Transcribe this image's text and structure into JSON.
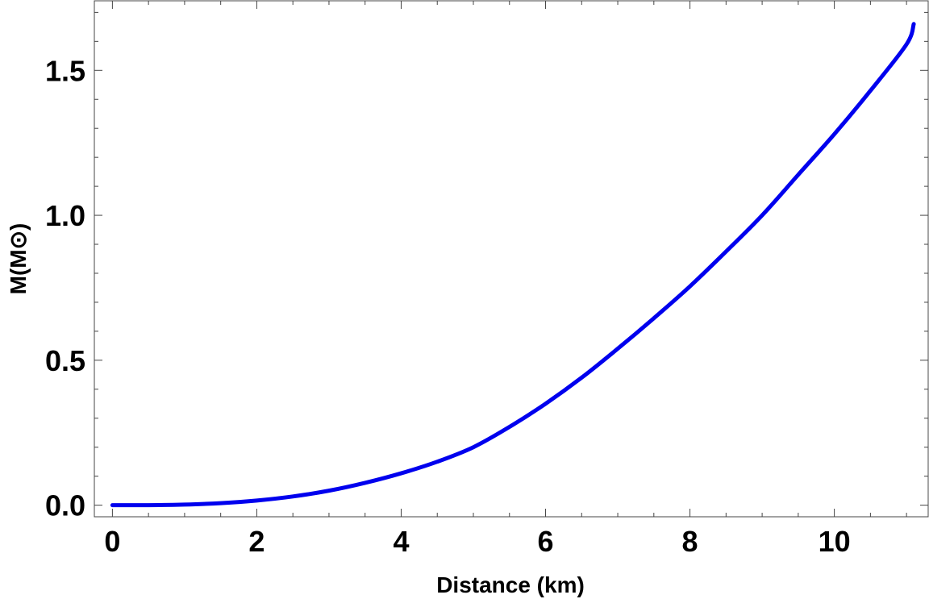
{
  "chart_data": {
    "type": "line",
    "title": "",
    "xlabel": "Distance (km)",
    "ylabel": "M(M⊙)",
    "xlim": [
      -0.25,
      11.3
    ],
    "ylim": [
      -0.04,
      1.74
    ],
    "x_ticks": [
      0,
      2,
      4,
      6,
      8,
      10
    ],
    "x_tick_labels": [
      "0",
      "2",
      "4",
      "6",
      "8",
      "10"
    ],
    "y_ticks": [
      0.0,
      0.5,
      1.0,
      1.5
    ],
    "y_tick_labels": [
      "0.0",
      "0.5",
      "1.0",
      "1.5"
    ],
    "grid": false,
    "legend": "none",
    "series": [
      {
        "color": "#0000ee",
        "x": [
          0,
          0.5,
          1,
          1.5,
          2,
          2.5,
          3,
          3.5,
          4,
          4.5,
          5,
          5.5,
          6,
          6.5,
          7,
          7.5,
          8,
          8.5,
          9,
          9.5,
          10,
          10.5,
          11,
          11.1
        ],
        "y": [
          0.0,
          0.0,
          0.002,
          0.007,
          0.016,
          0.03,
          0.05,
          0.077,
          0.11,
          0.15,
          0.2,
          0.27,
          0.35,
          0.44,
          0.54,
          0.645,
          0.755,
          0.875,
          1.0,
          1.14,
          1.28,
          1.43,
          1.59,
          1.66
        ]
      }
    ]
  }
}
